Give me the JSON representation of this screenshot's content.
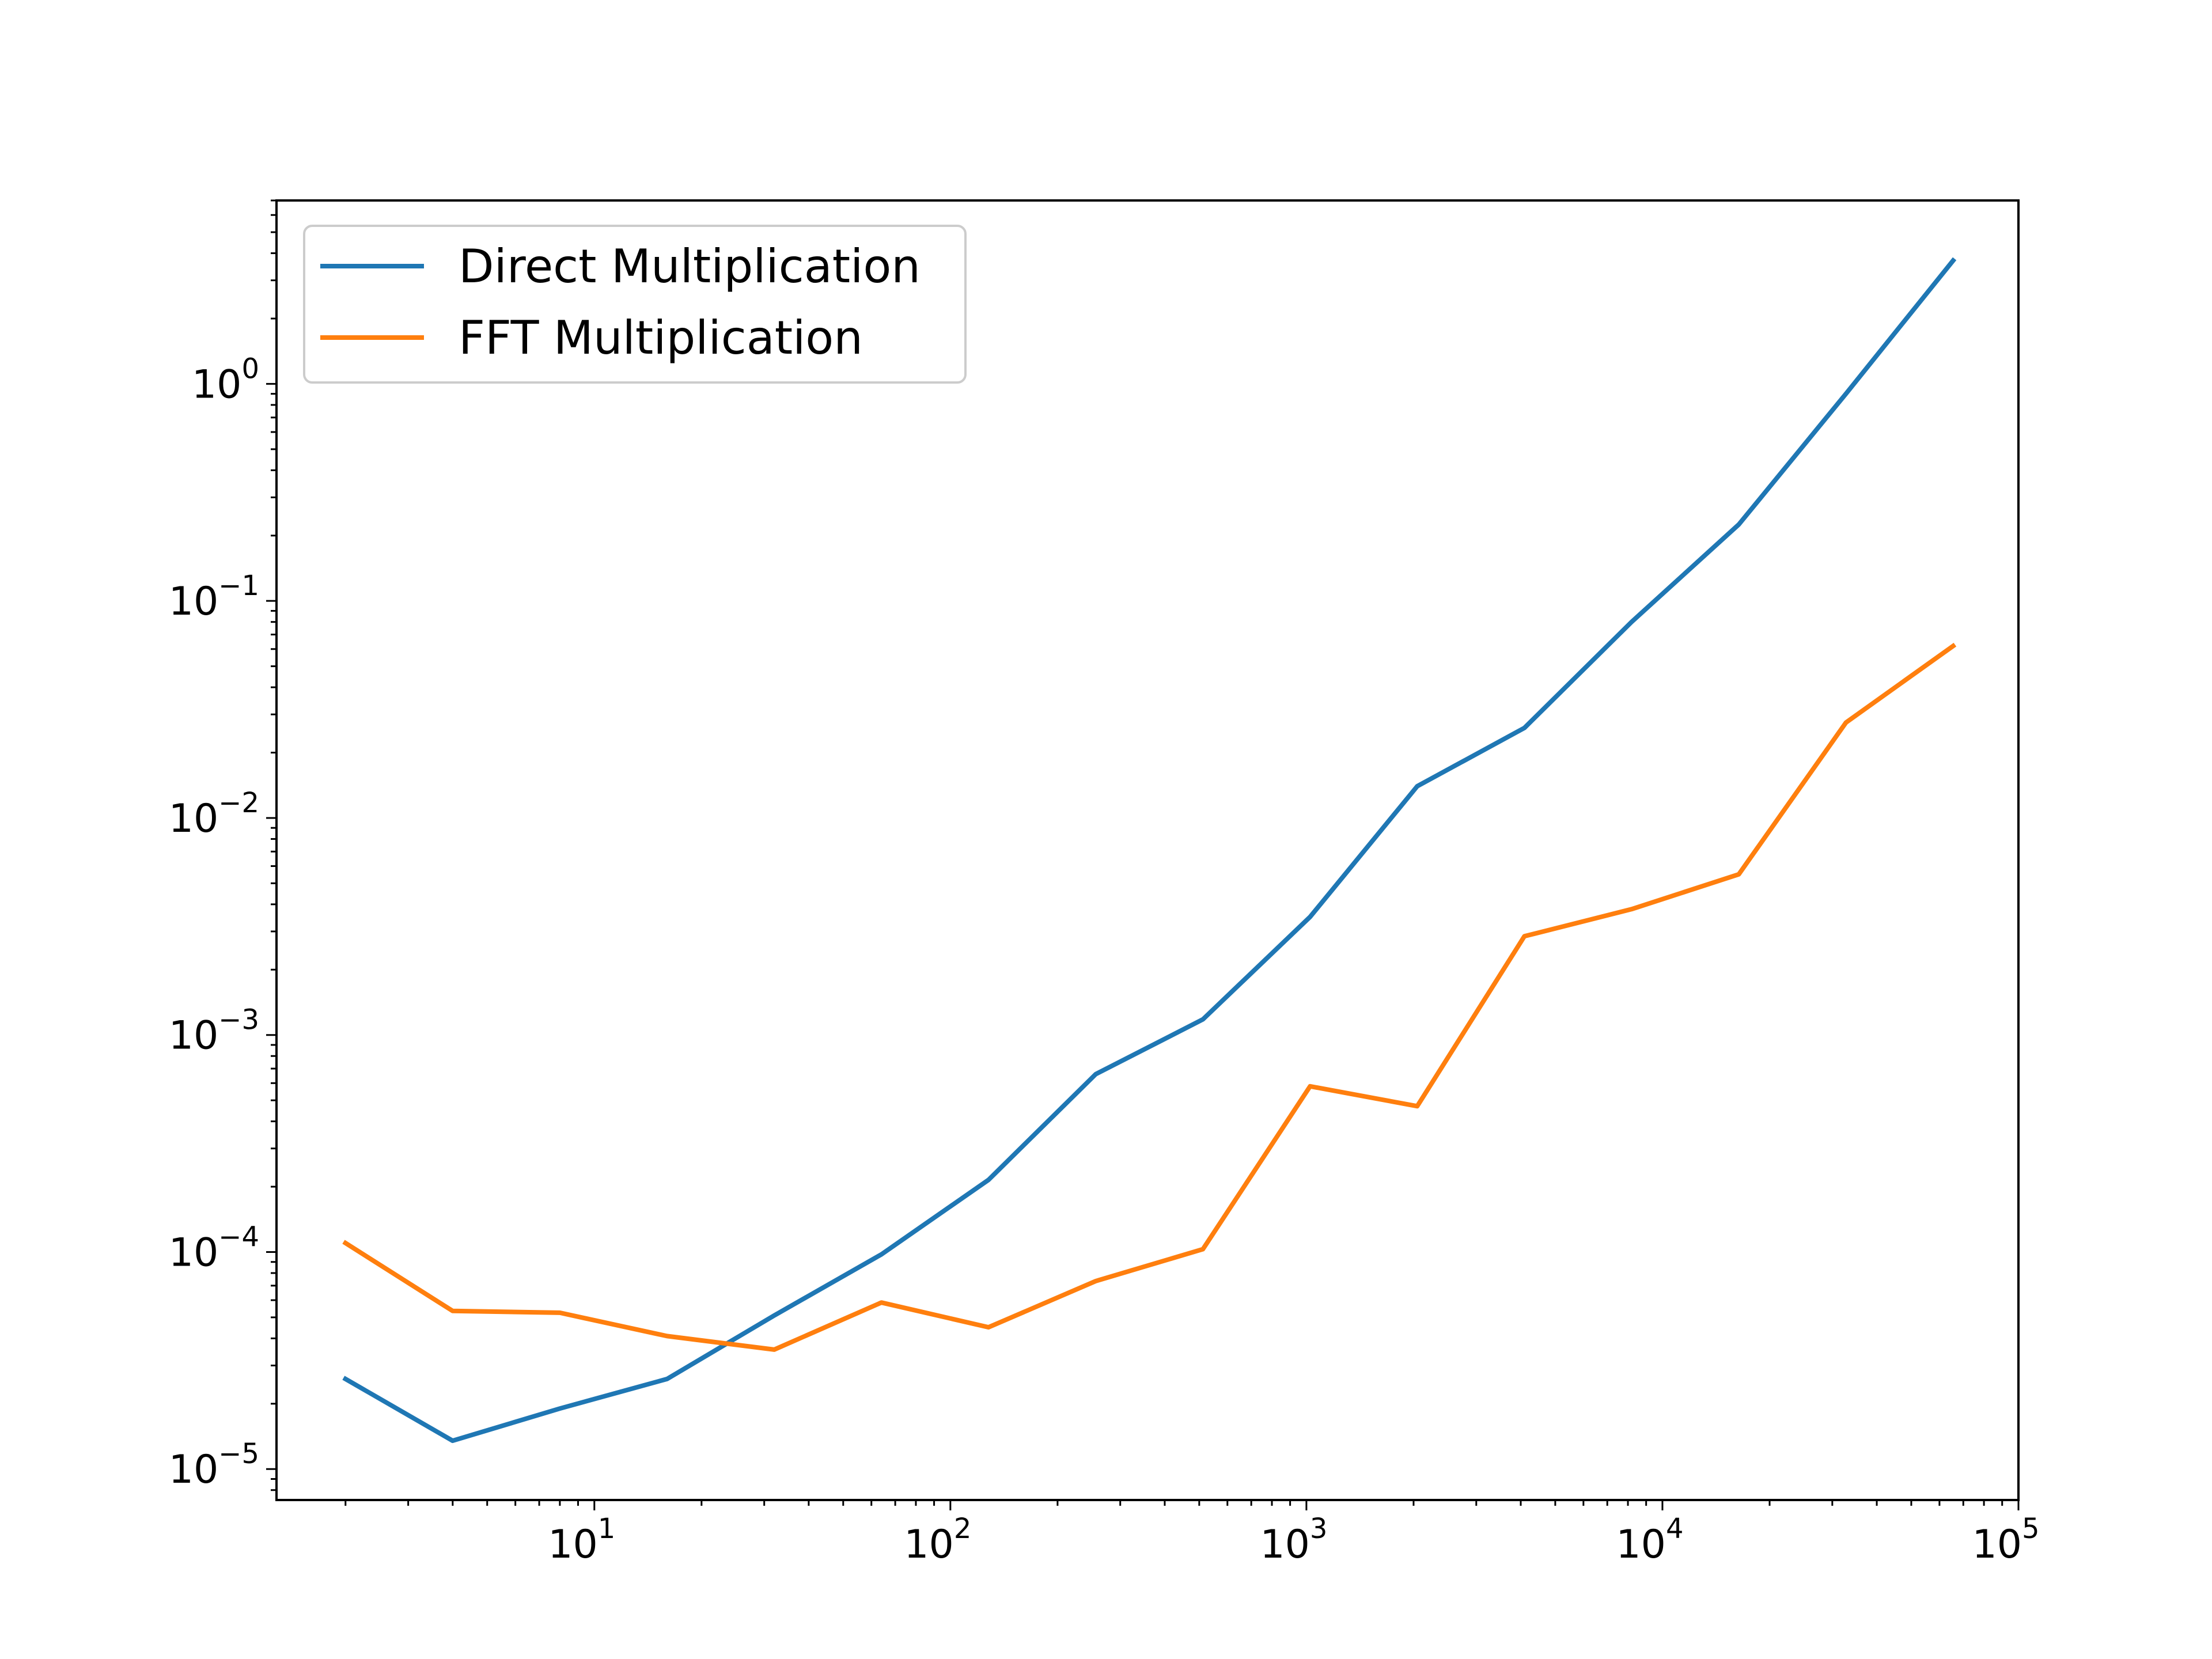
{
  "chart_data": {
    "type": "line",
    "title": "",
    "xlabel": "",
    "ylabel": "",
    "xscale": "log",
    "yscale": "log",
    "xlim": [
      1.28,
      100000
    ],
    "ylim": [
      7.2e-06,
      7.0
    ],
    "grid": false,
    "legend_position": "top-left",
    "x_ticks": [
      {
        "value": 10,
        "base": "10",
        "exp": "1"
      },
      {
        "value": 100,
        "base": "10",
        "exp": "2"
      },
      {
        "value": 1000,
        "base": "10",
        "exp": "3"
      },
      {
        "value": 10000,
        "base": "10",
        "exp": "4"
      },
      {
        "value": 100000,
        "base": "10",
        "exp": "5"
      }
    ],
    "y_ticks": [
      {
        "value": 1e-05,
        "base": "10",
        "exp": "−5"
      },
      {
        "value": 0.0001,
        "base": "10",
        "exp": "−4"
      },
      {
        "value": 0.001,
        "base": "10",
        "exp": "−3"
      },
      {
        "value": 0.01,
        "base": "10",
        "exp": "−2"
      },
      {
        "value": 0.1,
        "base": "10",
        "exp": "−1"
      },
      {
        "value": 1,
        "base": "10",
        "exp": "0"
      }
    ],
    "x": [
      2,
      4,
      8,
      16,
      32,
      64,
      128,
      256,
      512,
      1024,
      2048,
      4096,
      8192,
      16384,
      32768,
      65536
    ],
    "series": [
      {
        "name": "Direct Multiplication",
        "color": "#1f77b4",
        "values": [
          2.6e-05,
          1.35e-05,
          1.9e-05,
          2.6e-05,
          5.1e-05,
          9.75e-05,
          0.000215,
          0.00066,
          0.00118,
          0.0035,
          0.014,
          0.026,
          0.08,
          0.225,
          0.9,
          3.7
        ]
      },
      {
        "name": "FFT Multiplication",
        "color": "#ff7f0e",
        "values": [
          0.00011,
          5.35e-05,
          5.25e-05,
          4.1e-05,
          3.55e-05,
          5.85e-05,
          4.5e-05,
          7.35e-05,
          0.000103,
          0.00058,
          0.00047,
          0.00285,
          0.0038,
          0.0055,
          0.0275,
          0.062
        ]
      }
    ]
  }
}
